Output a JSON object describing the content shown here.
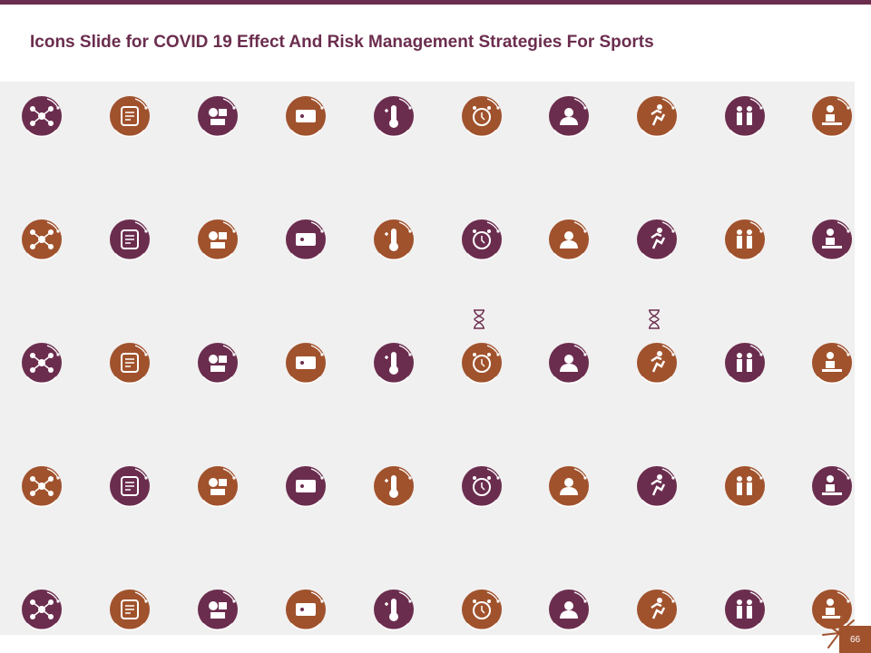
{
  "slide": {
    "title": "Icons Slide for COVID 19 Effect And Risk Management Strategies For Sports",
    "page_number": "66"
  },
  "colors": {
    "plum": "#6b2d4e",
    "rust": "#a0522d",
    "panel": "#f1f0f0"
  },
  "icon_rows": [
    [
      "network-icon",
      "baseball-glove-icon",
      "sports-equipment-icon",
      "ticket-icon",
      "thermometer-icon",
      "alarm-clock-icon",
      "stressed-person-icon",
      "runner-icon",
      "crowd-meeting-icon",
      "desk-worker-icon"
    ],
    [
      "diving-player-icon",
      "football-runner-icon",
      "monitor-presentation-icon",
      "sports-gear-icon",
      "team-people-icon",
      "weightlifter-icon",
      "group-discussion-icon",
      "money-bag-hand-icon",
      "dollar-hand-icon",
      "referee-players-icon"
    ],
    [
      "investor-money-icon",
      "balance-scale-icon",
      "businessman-money-icon",
      "person-shield-icon",
      "location-pin-icon",
      "clipboard-strategy-icon",
      "shield-checklist-icon",
      "team-meeting-icon",
      "computer-settings-icon",
      "monitor-hospital-icon"
    ],
    [
      "flowchart-icon",
      "baseball-helmet-icon",
      "money-flow-icon",
      "pyramid-chart-icon",
      "athlete-jersey-icon",
      "sports-balls-icon",
      "chat-people-icon",
      "growth-investor-icon",
      "target-team-icon",
      "laptop-graduate-icon"
    ],
    [
      "stadium-store-icon",
      "user-money-icon",
      "hierarchy-icon",
      "document-settings-icon",
      "file-icon",
      "presenter-list-icon",
      "head-gears-icon",
      "collaboration-money-icon",
      "calendar-hand-icon",
      "wallet-icon"
    ]
  ]
}
